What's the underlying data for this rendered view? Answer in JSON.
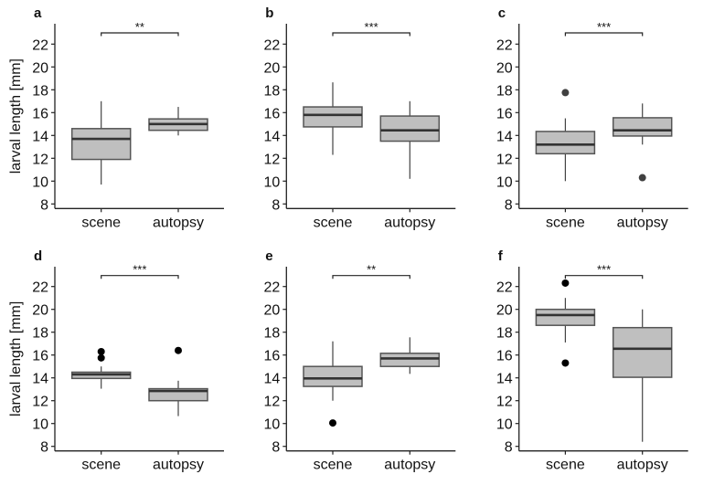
{
  "chart_data": [
    {
      "type": "box",
      "panel": "a",
      "ylabel": "larval length [mm]",
      "categories": [
        "scene",
        "autopsy"
      ],
      "ylim": [
        8,
        23.5
      ],
      "yticks": [
        8,
        10,
        12,
        14,
        16,
        18,
        20,
        22
      ],
      "significance": "**",
      "boxes": [
        {
          "name": "scene",
          "whisker_low": 9.7,
          "q1": 11.9,
          "median": 13.7,
          "q3": 14.6,
          "whisker_high": 17.0,
          "outliers": []
        },
        {
          "name": "autopsy",
          "whisker_low": 14.0,
          "q1": 14.45,
          "median": 15.0,
          "q3": 15.45,
          "whisker_high": 16.5,
          "outliers": []
        }
      ]
    },
    {
      "type": "box",
      "panel": "b",
      "ylabel": "",
      "categories": [
        "scene",
        "autopsy"
      ],
      "ylim": [
        8,
        23.5
      ],
      "yticks": [
        8,
        10,
        12,
        14,
        16,
        18,
        20,
        22
      ],
      "significance": "***",
      "boxes": [
        {
          "name": "scene",
          "whisker_low": 12.3,
          "q1": 14.75,
          "median": 15.8,
          "q3": 16.5,
          "whisker_high": 18.65,
          "outliers": []
        },
        {
          "name": "autopsy",
          "whisker_low": 10.2,
          "q1": 13.5,
          "median": 14.45,
          "q3": 15.7,
          "whisker_high": 17.0,
          "outliers": []
        }
      ]
    },
    {
      "type": "box",
      "panel": "c",
      "ylabel": "",
      "categories": [
        "scene",
        "autopsy"
      ],
      "ylim": [
        8,
        23.5
      ],
      "yticks": [
        8,
        10,
        12,
        14,
        16,
        18,
        20,
        22
      ],
      "significance": "***",
      "outlier_color": "#404040",
      "boxes": [
        {
          "name": "scene",
          "whisker_low": 10.0,
          "q1": 12.4,
          "median": 13.2,
          "q3": 14.35,
          "whisker_high": 15.5,
          "outliers": [
            17.75
          ]
        },
        {
          "name": "autopsy",
          "whisker_low": 13.2,
          "q1": 13.95,
          "median": 14.45,
          "q3": 15.55,
          "whisker_high": 16.8,
          "outliers": [
            10.3
          ]
        }
      ]
    },
    {
      "type": "box",
      "panel": "d",
      "ylabel": "larval length [mm]",
      "categories": [
        "scene",
        "autopsy"
      ],
      "ylim": [
        8,
        23.5
      ],
      "yticks": [
        8,
        10,
        12,
        14,
        16,
        18,
        20,
        22
      ],
      "significance": "***",
      "outlier_color": "#000000",
      "boxes": [
        {
          "name": "scene",
          "whisker_low": 13.05,
          "q1": 13.95,
          "median": 14.3,
          "q3": 14.5,
          "whisker_high": 15.0,
          "outliers": [
            16.3,
            15.75
          ]
        },
        {
          "name": "autopsy",
          "whisker_low": 10.65,
          "q1": 12.0,
          "median": 12.85,
          "q3": 13.05,
          "whisker_high": 13.75,
          "outliers": [
            16.4
          ]
        }
      ]
    },
    {
      "type": "box",
      "panel": "e",
      "ylabel": "",
      "categories": [
        "scene",
        "autopsy"
      ],
      "ylim": [
        8,
        23.5
      ],
      "yticks": [
        8,
        10,
        12,
        14,
        16,
        18,
        20,
        22
      ],
      "significance": "**",
      "outlier_color": "#000000",
      "boxes": [
        {
          "name": "scene",
          "whisker_low": 12.0,
          "q1": 13.25,
          "median": 13.95,
          "q3": 15.0,
          "whisker_high": 17.2,
          "outliers": [
            10.05
          ]
        },
        {
          "name": "autopsy",
          "whisker_low": 14.35,
          "q1": 15.0,
          "median": 15.7,
          "q3": 16.15,
          "whisker_high": 17.55,
          "outliers": []
        }
      ]
    },
    {
      "type": "box",
      "panel": "f",
      "ylabel": "",
      "categories": [
        "scene",
        "autopsy"
      ],
      "ylim": [
        8,
        23.5
      ],
      "yticks": [
        8,
        10,
        12,
        14,
        16,
        18,
        20,
        22
      ],
      "significance": "***",
      "outlier_color": "#000000",
      "boxes": [
        {
          "name": "scene",
          "whisker_low": 17.1,
          "q1": 18.6,
          "median": 19.5,
          "q3": 20.0,
          "whisker_high": 21.0,
          "outliers": [
            22.3,
            15.3
          ]
        },
        {
          "name": "autopsy",
          "whisker_low": 8.4,
          "q1": 14.05,
          "median": 16.55,
          "q3": 18.4,
          "whisker_high": 20.0,
          "outliers": []
        }
      ]
    }
  ],
  "style": {
    "box_fill": "#bfbfbf",
    "box_stroke": "#555555",
    "median_color": "#333333",
    "default_outlier_color": "#000000"
  }
}
